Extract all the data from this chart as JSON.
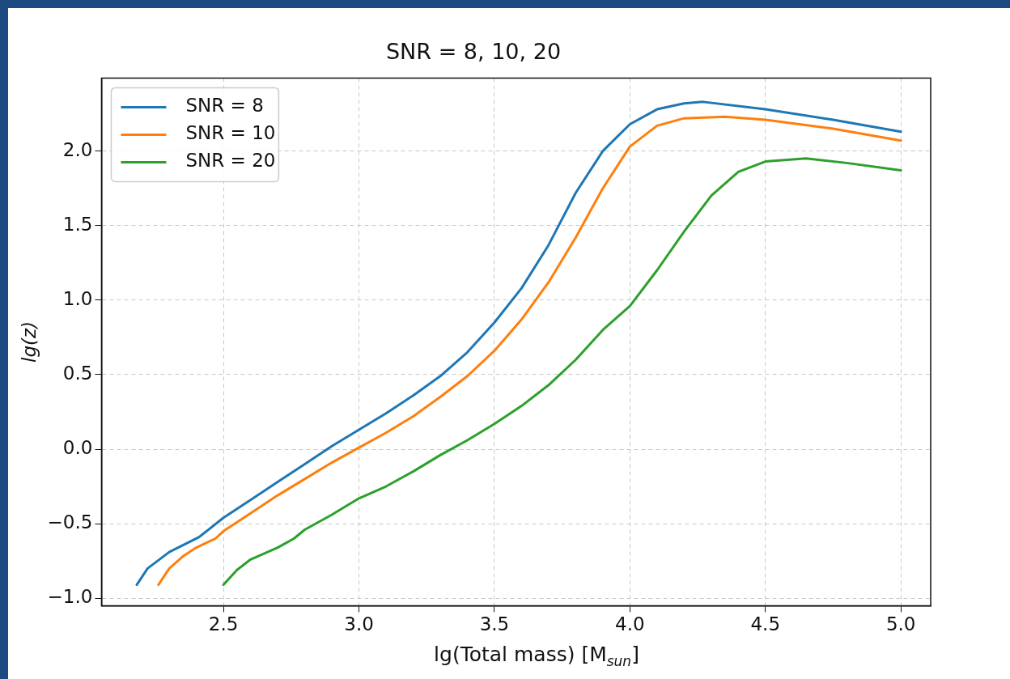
{
  "chart_data": {
    "type": "line",
    "title": "SNR = 8, 10, 20",
    "xlabel": "lg(Total mass) [M$_{sun}$]",
    "ylabel": "lg(z)",
    "series": [
      {
        "name": "SNR = 8",
        "color": "#1f77b4",
        "x": [
          2.18,
          2.22,
          2.3,
          2.41,
          2.5,
          2.6,
          2.7,
          2.8,
          2.9,
          3.0,
          3.1,
          3.2,
          3.3,
          3.4,
          3.5,
          3.6,
          3.7,
          3.8,
          3.9,
          4.0,
          4.1,
          4.2,
          4.27,
          4.5,
          4.75,
          5.0
        ],
        "values": [
          -0.91,
          -0.8,
          -0.69,
          -0.59,
          -0.46,
          -0.34,
          -0.22,
          -0.1,
          0.02,
          0.13,
          0.24,
          0.36,
          0.49,
          0.65,
          0.85,
          1.08,
          1.37,
          1.72,
          2.0,
          2.18,
          2.28,
          2.32,
          2.33,
          2.28,
          2.21,
          2.13
        ]
      },
      {
        "name": "SNR = 10",
        "color": "#ff7f0e",
        "x": [
          2.26,
          2.3,
          2.35,
          2.4,
          2.47,
          2.5,
          2.6,
          2.7,
          2.8,
          2.9,
          3.0,
          3.1,
          3.2,
          3.3,
          3.4,
          3.5,
          3.6,
          3.7,
          3.8,
          3.9,
          4.0,
          4.1,
          4.2,
          4.35,
          4.5,
          4.75,
          5.0
        ],
        "values": [
          -0.91,
          -0.8,
          -0.72,
          -0.66,
          -0.6,
          -0.55,
          -0.43,
          -0.31,
          -0.2,
          -0.09,
          0.01,
          0.11,
          0.22,
          0.35,
          0.49,
          0.66,
          0.87,
          1.12,
          1.42,
          1.75,
          2.03,
          2.17,
          2.22,
          2.23,
          2.21,
          2.15,
          2.07
        ]
      },
      {
        "name": "SNR = 20",
        "color": "#2ca02c",
        "x": [
          2.5,
          2.55,
          2.6,
          2.7,
          2.76,
          2.8,
          2.9,
          3.0,
          3.1,
          3.2,
          3.3,
          3.4,
          3.5,
          3.6,
          3.7,
          3.8,
          3.9,
          4.0,
          4.1,
          4.2,
          4.3,
          4.4,
          4.5,
          4.65,
          4.8,
          5.0
        ],
        "values": [
          -0.91,
          -0.81,
          -0.74,
          -0.66,
          -0.6,
          -0.54,
          -0.44,
          -0.33,
          -0.25,
          -0.15,
          -0.04,
          0.06,
          0.17,
          0.29,
          0.43,
          0.6,
          0.8,
          0.96,
          1.2,
          1.46,
          1.7,
          1.86,
          1.93,
          1.95,
          1.92,
          1.87
        ]
      }
    ],
    "xlim": [
      2.05,
      5.11
    ],
    "ylim": [
      -1.05,
      2.49
    ],
    "xticks": [
      2.5,
      {
        "value": 3,
        "label": "3.0"
      },
      3.5,
      {
        "value": 4,
        "label": "4.0"
      },
      4.5,
      {
        "value": 5,
        "label": "5.0"
      }
    ],
    "yticks": [
      {
        "value": -1,
        "label": "−1.0"
      },
      {
        "value": -0.5,
        "label": "−0.5"
      },
      {
        "value": 0,
        "label": "0.0"
      },
      0.5,
      {
        "value": 1,
        "label": "1.0"
      },
      1.5,
      {
        "value": 2,
        "label": "2.0"
      }
    ],
    "grid": true,
    "legend": "top left",
    "marker": "none",
    "line_style": "solid"
  }
}
